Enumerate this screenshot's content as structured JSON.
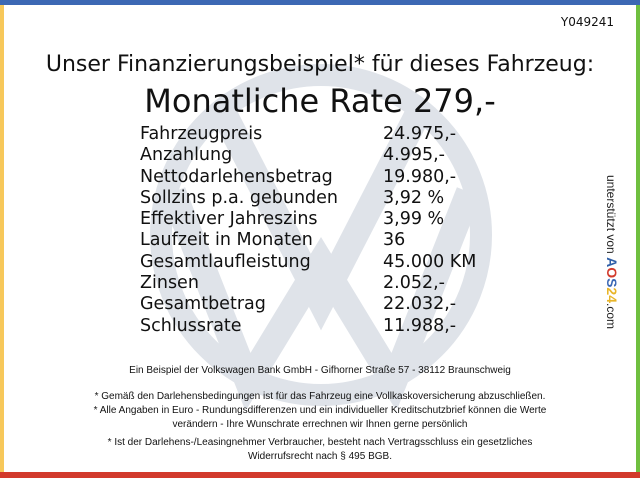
{
  "colors": {
    "top": "#3c68b4",
    "left": "#f7c85a",
    "right": "#6fbf3f",
    "bottom": "#d23a2c",
    "watermark": "#dfe3e9"
  },
  "watermark_icon": "vw-logo",
  "code": "Y049241",
  "title": "Unser Finanzierungsbeispiel* für dieses Fahrzeug:",
  "headline": "Monatliche Rate 279,-",
  "rows": [
    {
      "label": "Fahrzeugpreis",
      "value": "24.975,-"
    },
    {
      "label": "Anzahlung",
      "value": "4.995,-"
    },
    {
      "label": "Nettodarlehensbetrag",
      "value": "19.980,-"
    },
    {
      "label": "Sollzins p.a. gebunden",
      "value": "3,92 %"
    },
    {
      "label": "Effektiver Jahreszins",
      "value": "3,99 %"
    },
    {
      "label": "Laufzeit in Monaten",
      "value": "36"
    },
    {
      "label": "Gesamtlaufleistung",
      "value": "45.000 KM"
    },
    {
      "label": "Zinsen",
      "value": "2.052,-"
    },
    {
      "label": "Gesamtbetrag",
      "value": "22.032,-"
    },
    {
      "label": "Schlussrate",
      "value": "11.988,-"
    }
  ],
  "side": {
    "prefix": "unterstützt von",
    "a": "A",
    "o": "O",
    "s": "S",
    "n": "24",
    "suffix": ".com"
  },
  "footer": {
    "bank": "Ein Beispiel der Volkswagen Bank GmbH - Gifhorner Straße 57 - 38112 Braunschweig",
    "note1": "* Gemäß den Darlehensbedingungen ist für das Fahrzeug eine Vollkaskoversicherung abzuschließen.",
    "note2a": "* Alle Angaben in Euro - Rundungsdifferenzen und ein individueller Kreditschutzbrief können die Werte",
    "note2b": "verändern - Ihre Wunschrate errechnen wir Ihnen gerne persönlich",
    "note3a": "* Ist der Darlehens-/Leasingnehmer Verbraucher, besteht nach Vertragsschluss ein gesetzliches",
    "note3b": "Widerrufsrecht nach § 495 BGB."
  }
}
